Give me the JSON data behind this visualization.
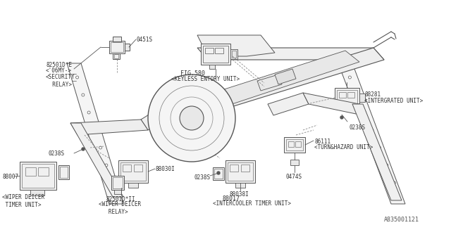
{
  "bg_color": "#ffffff",
  "line_color": "#555555",
  "text_color": "#333333",
  "title_id": "A835001121",
  "labels": {
    "security_relay_id": "82501D*E",
    "security_relay_id2": "<'06MY->",
    "security_relay": "<SECURITY\n  RELAY>",
    "security_relay_num": "0451S",
    "keyless_id": "FIG.580",
    "keyless": "<KEYLESS ENTORY UNIT>",
    "integrated_id": "88281",
    "integrated": "<INTERGRATED UNIT>",
    "integrated_num": "0238S",
    "wiper_deicer_id": "88007",
    "wiper_deicer": "<WIPER DEICER\n TIMER UNIT>",
    "wiper_relay_id": "82501D*II",
    "wiper_relay": "<WIPER DEICER\n   RELAY>",
    "wiper_relay_num": "88030I",
    "wiper_num2": "0238S",
    "intercooler_id": "88017",
    "intercooler": "<INTERCOOLER TIMER UNIT>",
    "intercooler_num": "88038I",
    "intercooler_num2": "0238S",
    "turn_hazard_id": "86111",
    "turn_hazard": "<TURN&HAZARD UNIT>",
    "turn_num": "0474S"
  }
}
